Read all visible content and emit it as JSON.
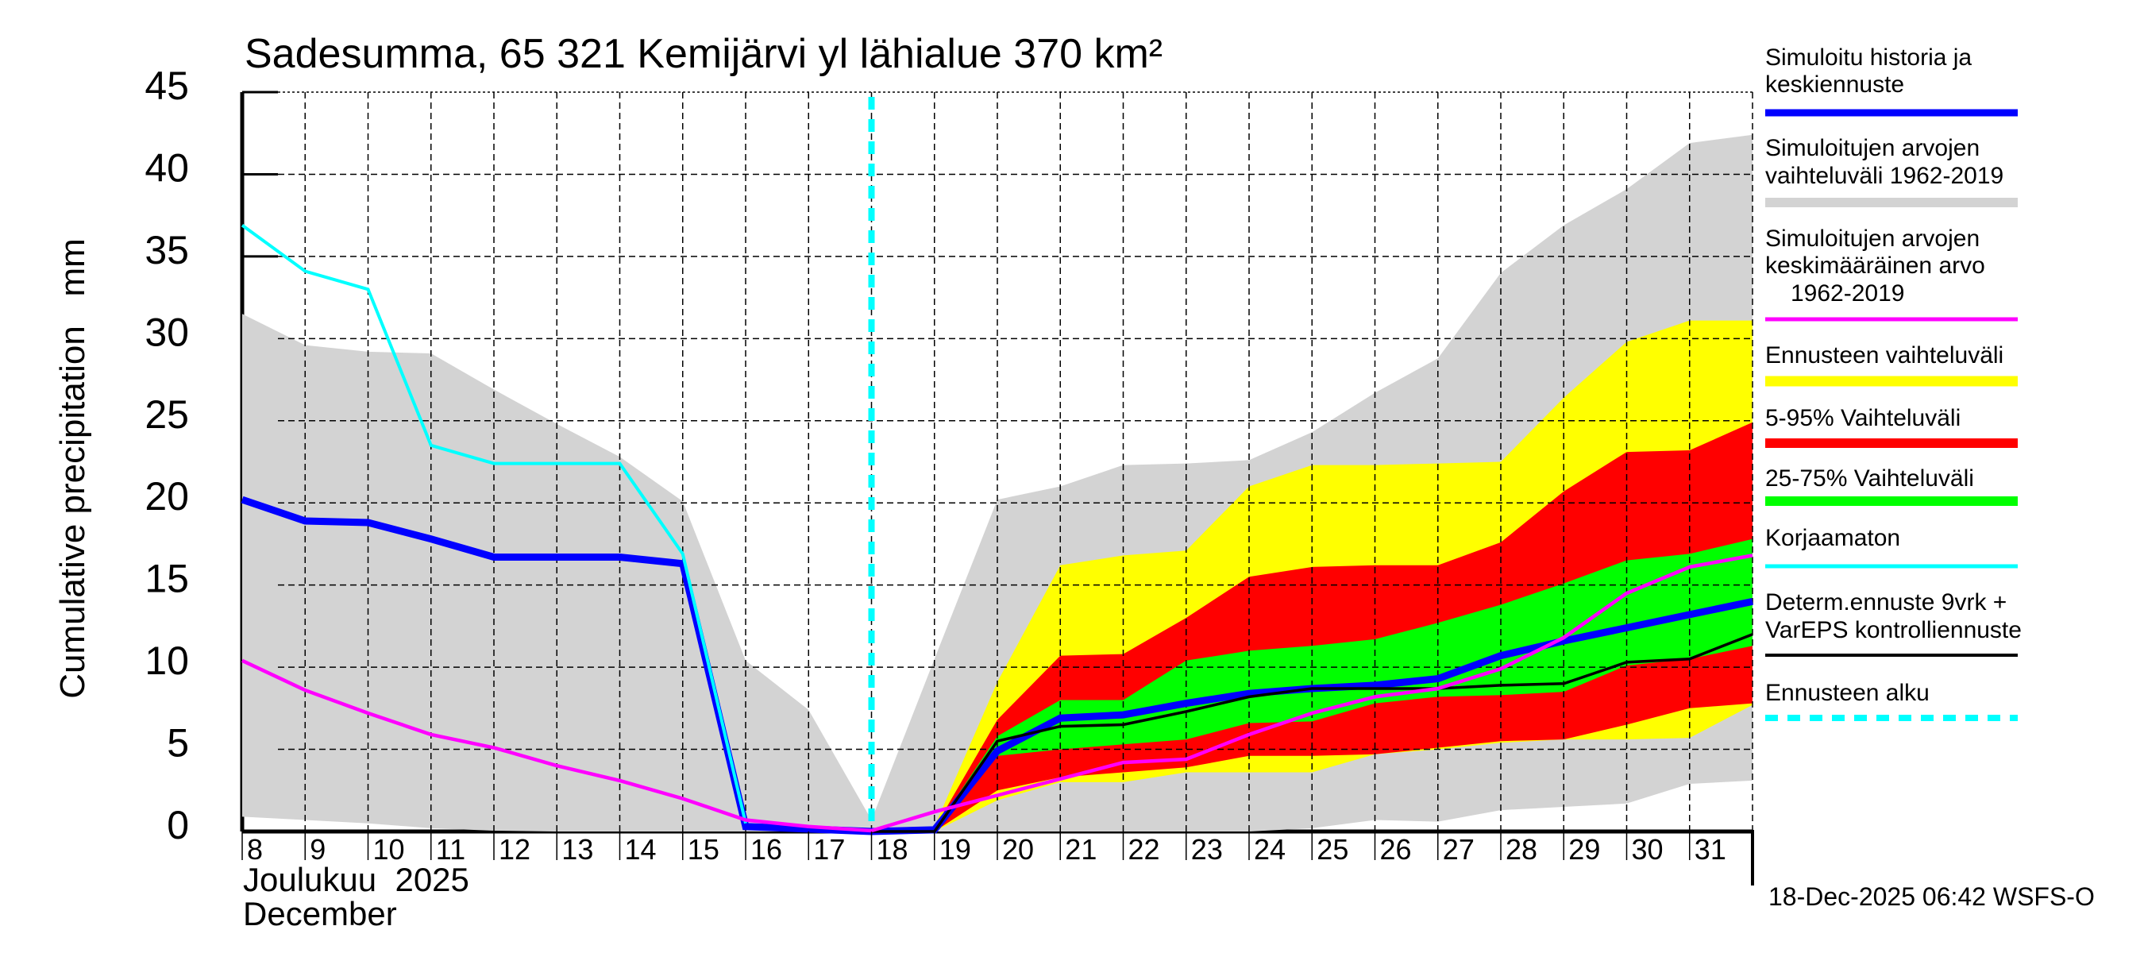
{
  "chart_data": {
    "type": "area",
    "title": "Sadesumma, 65 321 Kemijärvi yl lähialue 370 km²",
    "ylabel": "Cumulative precipitation   mm",
    "xlabel_lines": [
      "Joulukuu  2025",
      "December"
    ],
    "xlim": [
      8,
      32
    ],
    "ylim": [
      0,
      45
    ],
    "yticks": [
      0,
      5,
      10,
      15,
      20,
      25,
      30,
      35,
      40,
      45
    ],
    "xticks": [
      8,
      9,
      10,
      11,
      12,
      13,
      14,
      15,
      16,
      17,
      18,
      19,
      20,
      21,
      22,
      23,
      24,
      25,
      26,
      27,
      28,
      29,
      30,
      31
    ],
    "grid": true,
    "legend_position": "right",
    "forecast_start_day": 18,
    "bands": {
      "simulated_range_1962_2019": {
        "color": "#d3d3d3",
        "x": [
          8,
          9,
          10,
          11,
          12,
          13,
          14,
          15,
          16,
          17,
          18,
          19,
          20,
          21,
          22,
          23,
          24,
          25,
          26,
          27,
          28,
          29,
          30,
          31,
          32
        ],
        "upper": [
          31.5,
          29.6,
          29.2,
          29.1,
          26.9,
          24.8,
          22.8,
          20.1,
          10.4,
          7.4,
          0.7,
          10.5,
          20.2,
          21.0,
          22.3,
          22.4,
          22.6,
          24.3,
          26.7,
          28.8,
          34.0,
          36.9,
          39.1,
          41.9,
          42.4
        ],
        "lower": [
          0.9,
          0.7,
          0.5,
          0.2,
          0.05,
          0,
          0,
          0,
          0,
          0,
          0,
          0,
          0,
          0,
          0,
          0,
          0,
          0.2,
          0.7,
          0.6,
          1.3,
          1.5,
          1.7,
          2.9,
          3.1
        ]
      },
      "forecast_range": {
        "color": "#ffff00",
        "x": [
          18,
          19,
          20,
          21,
          22,
          23,
          24,
          25,
          26,
          27,
          28,
          29,
          30,
          31,
          32
        ],
        "upper": [
          0,
          0.3,
          9.1,
          16.2,
          16.8,
          17.1,
          21.0,
          22.3,
          22.3,
          22.4,
          22.5,
          26.4,
          29.8,
          31.1,
          31.1
        ],
        "lower": [
          0,
          0,
          1.9,
          3.0,
          3.0,
          3.6,
          3.6,
          3.6,
          4.7,
          5.0,
          5.4,
          5.6,
          5.6,
          5.7,
          7.7
        ]
      },
      "range_5_95": {
        "color": "#ff0000",
        "x": [
          18,
          19,
          20,
          21,
          22,
          23,
          24,
          25,
          26,
          27,
          28,
          29,
          30,
          31,
          32
        ],
        "upper": [
          0,
          0.2,
          6.8,
          10.7,
          10.8,
          13.0,
          15.5,
          16.1,
          16.2,
          16.2,
          17.6,
          20.7,
          23.1,
          23.2,
          24.9
        ],
        "lower": [
          0,
          0,
          2.5,
          3.3,
          3.6,
          3.9,
          4.6,
          4.6,
          4.7,
          5.1,
          5.5,
          5.6,
          6.5,
          7.5,
          7.8
        ]
      },
      "range_25_75": {
        "color": "#00ff00",
        "x": [
          18,
          19,
          20,
          21,
          22,
          23,
          24,
          25,
          26,
          27,
          28,
          29,
          30,
          31,
          32
        ],
        "upper": [
          0,
          0.1,
          5.8,
          8.0,
          8.0,
          10.4,
          11.0,
          11.3,
          11.7,
          12.7,
          13.8,
          15.1,
          16.5,
          16.9,
          17.8
        ],
        "lower": [
          0,
          0,
          4.6,
          5.0,
          5.3,
          5.6,
          6.6,
          6.7,
          7.8,
          8.2,
          8.3,
          8.5,
          10.1,
          10.5,
          11.3
        ]
      }
    },
    "lines": {
      "simulated_history_and_median_forecast": {
        "color": "#0000ff",
        "x": [
          8,
          9,
          10,
          11,
          12,
          13,
          14,
          15,
          16,
          17,
          18,
          19,
          20,
          21,
          22,
          23,
          24,
          25,
          26,
          27,
          28,
          29,
          30,
          31,
          32
        ],
        "y": [
          20.2,
          18.9,
          18.8,
          17.8,
          16.7,
          16.7,
          16.7,
          16.3,
          0.3,
          0.15,
          0.0,
          0.1,
          4.9,
          6.9,
          7.1,
          7.8,
          8.4,
          8.7,
          8.9,
          9.3,
          10.7,
          11.6,
          12.4,
          13.2,
          14.0
        ]
      },
      "uncorrected": {
        "color": "#00ffff",
        "x": [
          8,
          9,
          10,
          11,
          12,
          13,
          14,
          15,
          16
        ],
        "y": [
          36.9,
          34.1,
          33.0,
          23.5,
          22.4,
          22.4,
          22.4,
          16.9,
          0.5
        ]
      },
      "deterministic_control_forecast": {
        "color": "#000000",
        "x": [
          18,
          19,
          20,
          21,
          22,
          23,
          24,
          25,
          26,
          27,
          28,
          29,
          30,
          31,
          32
        ],
        "y": [
          0,
          0,
          5.5,
          6.4,
          6.5,
          7.3,
          8.2,
          8.7,
          8.7,
          8.7,
          8.9,
          9.0,
          10.3,
          10.5,
          12.0
        ]
      },
      "simulated_mean_1962_2019": {
        "color": "#ff00ff",
        "x": [
          8,
          9,
          10,
          11,
          12,
          13,
          14,
          15,
          16,
          17,
          18,
          19,
          20,
          21,
          22,
          23,
          24,
          25,
          26,
          27,
          28,
          29,
          30,
          31,
          32
        ],
        "y": [
          10.4,
          8.6,
          7.2,
          5.9,
          5.1,
          4.0,
          3.1,
          2.0,
          0.7,
          0.3,
          0.05,
          1.2,
          2.2,
          3.2,
          4.2,
          4.4,
          5.9,
          7.2,
          8.2,
          8.7,
          9.9,
          11.8,
          14.5,
          16.1,
          16.8
        ]
      }
    }
  },
  "legend": [
    {
      "lines": [
        "Simuloitu historia ja",
        "keskiennuste"
      ],
      "color": "#0000ff"
    },
    {
      "lines": [
        "Simuloitujen arvojen",
        "vaihteluväli 1962-2019"
      ],
      "color": "#d3d3d3"
    },
    {
      "lines": [
        "Simuloitujen arvojen",
        "keskimääräinen arvo",
        "1962-2019"
      ],
      "color": "#ff00ff"
    },
    {
      "lines": [
        "Ennusteen vaihteluväli"
      ],
      "color": "#ffff00"
    },
    {
      "lines": [
        "5-95% Vaihteluväli"
      ],
      "color": "#ff0000"
    },
    {
      "lines": [
        "25-75% Vaihteluväli"
      ],
      "color": "#00ff00"
    },
    {
      "lines": [
        "Korjaamaton"
      ],
      "color": "#00ffff"
    },
    {
      "lines": [
        "Determ.ennuste 9vrk +",
        "VarEPS kontrolliennuste"
      ],
      "color": "#000000"
    },
    {
      "lines": [
        "Ennusteen alku"
      ],
      "color": "#00ffff",
      "dashed": true
    }
  ],
  "timestamp": "18-Dec-2025 06:42 WSFS-O"
}
